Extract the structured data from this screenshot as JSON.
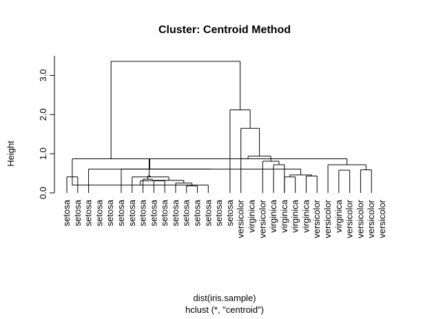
{
  "chart_data": {
    "type": "dendrogram",
    "title": "Cluster: Centroid Method",
    "ylabel": "Height",
    "xlabel_lines": [
      "dist(iris.sample)",
      "hclust (*, \"centroid\")"
    ],
    "ylim": [
      0,
      3.5
    ],
    "yticks": [
      0.0,
      1.0,
      2.0,
      3.0
    ],
    "ytick_labels": [
      "0.0",
      "1.0",
      "2.0",
      "3.0"
    ],
    "leaves": [
      "setosa",
      "setosa",
      "setosa",
      "setosa",
      "setosa",
      "setosa",
      "setosa",
      "setosa",
      "setosa",
      "setosa",
      "setosa",
      "setosa",
      "setosa",
      "setosa",
      "setosa",
      "setosa",
      "versicolor",
      "virginica",
      "versicolor",
      "virginica",
      "virginica",
      "virginica",
      "virginica",
      "versicolor",
      "versicolor",
      "virginica",
      "versicolor",
      "versicolor",
      "versicolor",
      "versicolor"
    ],
    "merges": [
      {
        "left": 0,
        "right": 1,
        "height": 0.41
      },
      {
        "left": 11,
        "right": 12,
        "height": 0.18
      },
      {
        "left": -1,
        "right": 13,
        "height": 0.2
      },
      {
        "left": 10,
        "right": -2,
        "height": 0.25
      },
      {
        "left": 9,
        "right": -3,
        "height": 0.31
      },
      {
        "left": 8,
        "right": -4,
        "height": 0.32
      },
      {
        "left": 7,
        "right": -5,
        "height": 0.35
      },
      {
        "left": 6,
        "right": -6,
        "height": 0.41
      },
      {
        "left": 20,
        "right": 21,
        "height": 0.41
      },
      {
        "left": 22,
        "right": 23,
        "height": 0.43
      },
      {
        "left": 25,
        "right": 26,
        "height": 0.58
      },
      {
        "left": 27,
        "right": 28,
        "height": 0.59
      },
      {
        "left": -7,
        "right": -8,
        "height": 0.43
      },
      {
        "left": -9,
        "right": -10,
        "height": 0.46
      },
      {
        "left": 19,
        "right": 20,
        "height": 0.72
      },
      {
        "left": 24,
        "right": -12,
        "height": 0.72
      },
      {
        "left": 18,
        "right": -15,
        "height": 0.81
      },
      {
        "left": -13,
        "right": -16,
        "height": 0.87
      },
      {
        "left": 5,
        "right": -14,
        "height": 0.61
      },
      {
        "left": 2,
        "right": -19,
        "height": 0.61
      },
      {
        "left": -1,
        "right": -20,
        "height": 0.87
      },
      {
        "left": -17,
        "right": -18,
        "height": 0.94
      },
      {
        "left": 16,
        "right": -22,
        "height": 1.65
      },
      {
        "left": 15,
        "right": -23,
        "height": 2.12
      },
      {
        "left": -21,
        "right": -24,
        "height": 3.36
      }
    ]
  }
}
